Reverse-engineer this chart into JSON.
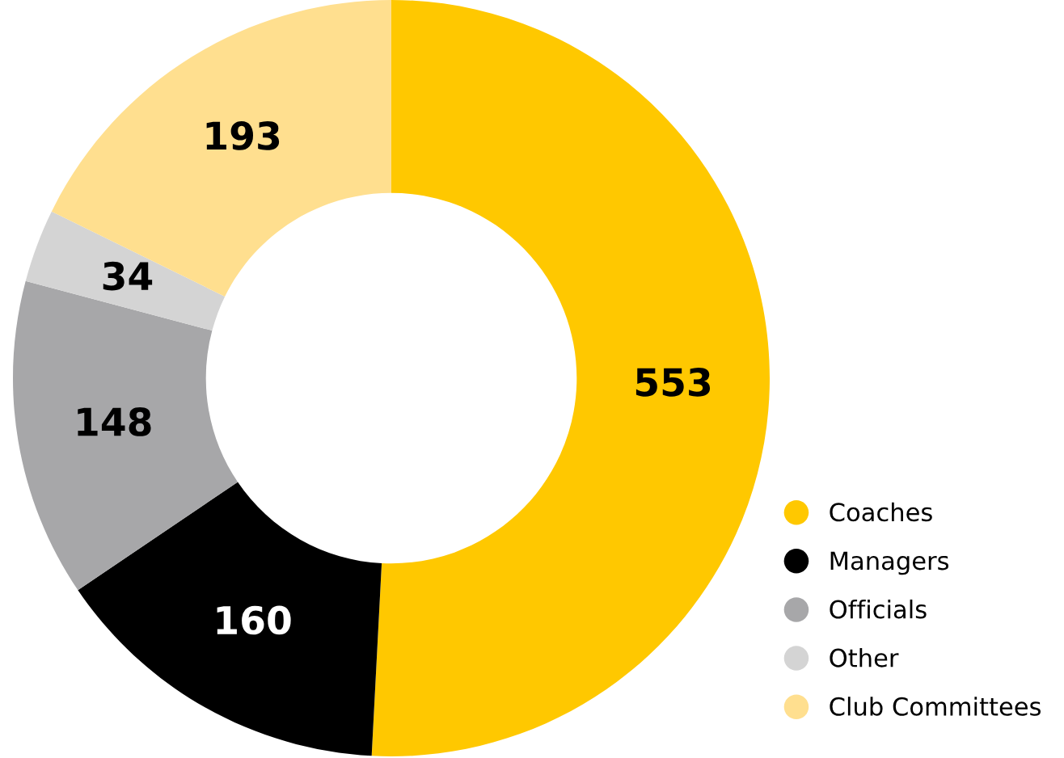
{
  "chart_data": {
    "type": "donut",
    "categories": [
      "Coaches",
      "Managers",
      "Officials",
      "Other",
      "Club Committees"
    ],
    "values": [
      553,
      160,
      148,
      34,
      193
    ],
    "colors": [
      "#ffc800",
      "#000000",
      "#a7a7a9",
      "#d4d4d4",
      "#ffdf8f"
    ],
    "data_labels": true,
    "legend": "bottom right"
  }
}
